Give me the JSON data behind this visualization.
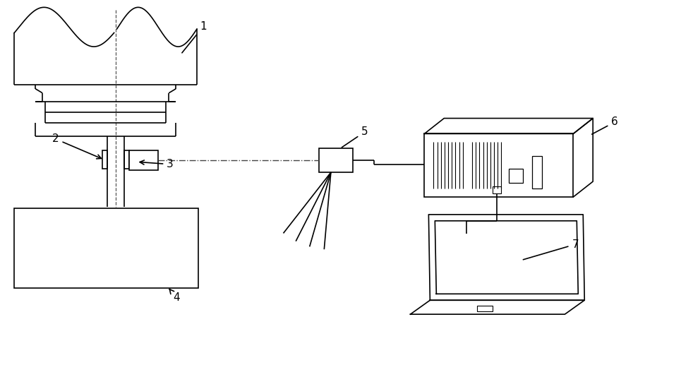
{
  "bg_color": "#ffffff",
  "line_color": "#000000",
  "line_width": 1.2,
  "fig_width": 9.65,
  "fig_height": 5.51,
  "dpi": 100,
  "label_fontsize": 11
}
